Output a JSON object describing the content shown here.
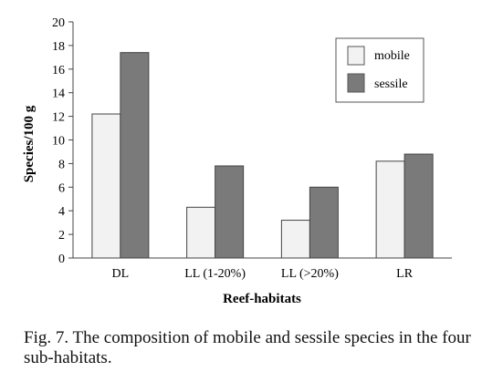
{
  "chart_data": {
    "type": "bar",
    "title": "",
    "xlabel": "Reef-habitats",
    "ylabel": "Species/100 g",
    "categories": [
      "DL",
      "LL (1-20%)",
      "LL (>20%)",
      "LR"
    ],
    "series": [
      {
        "name": "mobile",
        "values": [
          12.2,
          4.3,
          3.2,
          8.2
        ],
        "color": "#f2f2f2"
      },
      {
        "name": "sessile",
        "values": [
          17.4,
          7.8,
          6.0,
          8.8
        ],
        "color": "#7a7a7a"
      }
    ],
    "ylim": [
      0,
      20
    ],
    "yticks": [
      "0",
      "2",
      "4",
      "6",
      "8",
      "10",
      "12",
      "14",
      "16",
      "18",
      "20"
    ],
    "grid": false,
    "legend_position": "top-right"
  },
  "caption": "Fig. 7. The composition of mobile and sessile species in the four sub-habitats."
}
